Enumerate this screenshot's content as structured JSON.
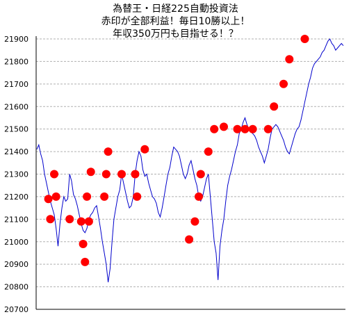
{
  "chart_data": {
    "type": "line",
    "title_lines": [
      "為替王・日経225自動投資法",
      "赤印が全部利益！毎日10勝以上！",
      "年収350万円も目指せる！？"
    ],
    "xlabel": "",
    "ylabel": "",
    "ylim": [
      20700,
      21950
    ],
    "yticks": [
      20700,
      20800,
      20900,
      21000,
      21100,
      21200,
      21300,
      21400,
      21500,
      21600,
      21700,
      21800,
      21900
    ],
    "grid": "horizontal-dashed",
    "legend": "none",
    "line_color": "#0000cc",
    "marker_color": "#ff0000",
    "series": [
      {
        "values": [
          21410,
          21430,
          21390,
          21360,
          21300,
          21260,
          21220,
          21180,
          21150,
          21120,
          21060,
          20980,
          21080,
          21150,
          21200,
          21180,
          21190,
          21300,
          21270,
          21210,
          21190,
          21160,
          21120,
          21080,
          21050,
          21040,
          21060,
          21100,
          21120,
          21130,
          21150,
          21160,
          21110,
          21060,
          21000,
          20950,
          20900,
          20820,
          20880,
          21000,
          21100,
          21150,
          21200,
          21230,
          21300,
          21260,
          21220,
          21180,
          21150,
          21160,
          21200,
          21300,
          21360,
          21400,
          21380,
          21320,
          21290,
          21300,
          21260,
          21230,
          21200,
          21190,
          21170,
          21130,
          21110,
          21150,
          21200,
          21250,
          21300,
          21330,
          21380,
          21420,
          21410,
          21400,
          21380,
          21340,
          21300,
          21280,
          21300,
          21340,
          21360,
          21320,
          21280,
          21250,
          21200,
          21180,
          21200,
          21240,
          21280,
          21300,
          21200,
          21100,
          21000,
          20950,
          20830,
          20980,
          21050,
          21100,
          21180,
          21250,
          21290,
          21320,
          21360,
          21400,
          21430,
          21480,
          21500,
          21530,
          21550,
          21520,
          21500,
          21490,
          21480,
          21470,
          21450,
          21420,
          21400,
          21380,
          21350,
          21380,
          21410,
          21460,
          21500,
          21510,
          21520,
          21510,
          21490,
          21470,
          21450,
          21420,
          21400,
          21390,
          21420,
          21450,
          21480,
          21500,
          21510,
          21540,
          21580,
          21620,
          21660,
          21700,
          21730,
          21770,
          21790,
          21800,
          21810,
          21820,
          21840,
          21850,
          21870,
          21890,
          21900,
          21880,
          21870,
          21850,
          21860,
          21870,
          21880,
          21870
        ],
        "markers": [
          {
            "i": 6,
            "v": 21190
          },
          {
            "i": 7,
            "v": 21100
          },
          {
            "i": 9,
            "v": 21300
          },
          {
            "i": 10,
            "v": 21200
          },
          {
            "i": 17,
            "v": 21100
          },
          {
            "i": 23,
            "v": 21090
          },
          {
            "i": 24,
            "v": 20990
          },
          {
            "i": 25,
            "v": 20910
          },
          {
            "i": 26,
            "v": 21200
          },
          {
            "i": 27,
            "v": 21090
          },
          {
            "i": 28,
            "v": 21310
          },
          {
            "i": 35,
            "v": 21200
          },
          {
            "i": 36,
            "v": 21300
          },
          {
            "i": 37,
            "v": 21400
          },
          {
            "i": 44,
            "v": 21300
          },
          {
            "i": 51,
            "v": 21300
          },
          {
            "i": 52,
            "v": 21200
          },
          {
            "i": 56,
            "v": 21410
          },
          {
            "i": 79,
            "v": 21010
          },
          {
            "i": 82,
            "v": 21090
          },
          {
            "i": 84,
            "v": 21200
          },
          {
            "i": 85,
            "v": 21300
          },
          {
            "i": 89,
            "v": 21400
          },
          {
            "i": 92,
            "v": 21500
          },
          {
            "i": 97,
            "v": 21510
          },
          {
            "i": 104,
            "v": 21500
          },
          {
            "i": 108,
            "v": 21500
          },
          {
            "i": 112,
            "v": 21500
          },
          {
            "i": 120,
            "v": 21500
          },
          {
            "i": 123,
            "v": 21600
          },
          {
            "i": 128,
            "v": 21700
          },
          {
            "i": 131,
            "v": 21810
          },
          {
            "i": 139,
            "v": 21900
          }
        ]
      }
    ]
  }
}
